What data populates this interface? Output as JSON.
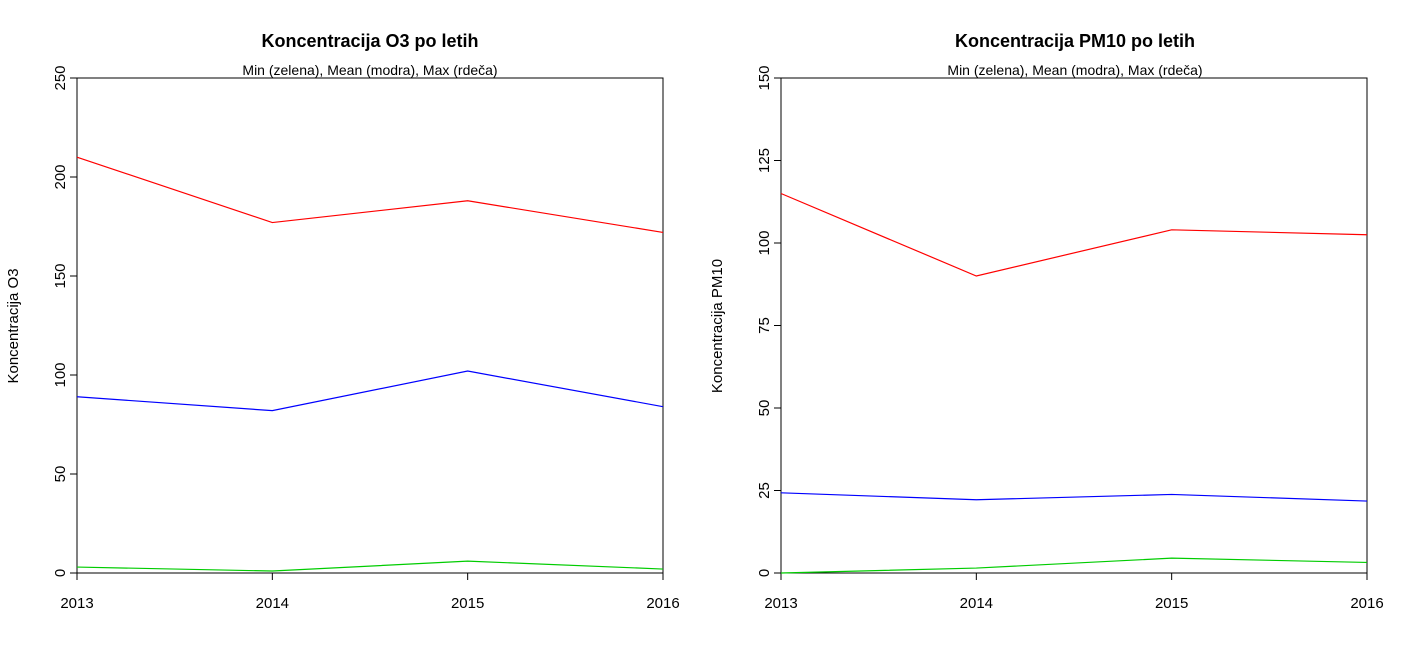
{
  "chart_data": [
    {
      "type": "line",
      "title": "Koncentracija O3 po letih",
      "subtitle": "Min (zelena), Mean (modra), Max (rdeča)",
      "xlabel": "",
      "ylabel": "Koncentracija O3",
      "x": [
        2013,
        2014,
        2015,
        2016
      ],
      "xticks": [
        2013,
        2014,
        2015,
        2016
      ],
      "ylim": [
        0,
        250
      ],
      "yticks": [
        0,
        50,
        100,
        150,
        200,
        250
      ],
      "grid": false,
      "series": [
        {
          "color": "#ff0000",
          "values": [
            210,
            177,
            188,
            172
          ]
        },
        {
          "color": "#0000ff",
          "values": [
            89,
            82,
            102,
            84
          ]
        },
        {
          "color": "#00cc00",
          "values": [
            3,
            1,
            6,
            2
          ]
        }
      ]
    },
    {
      "type": "line",
      "title": "Koncentracija PM10 po letih",
      "subtitle": "Min (zelena), Mean (modra), Max (rdeča)",
      "xlabel": "",
      "ylabel": "Koncentracija PM10",
      "x": [
        2013,
        2014,
        2015,
        2016
      ],
      "xticks": [
        2013,
        2014,
        2015,
        2016
      ],
      "ylim": [
        0,
        150
      ],
      "yticks": [
        0,
        25,
        50,
        75,
        100,
        125,
        150
      ],
      "grid": false,
      "series": [
        {
          "color": "#ff0000",
          "values": [
            115,
            90,
            104,
            102.5
          ]
        },
        {
          "color": "#0000ff",
          "values": [
            24.3,
            22.2,
            23.8,
            21.8
          ]
        },
        {
          "color": "#00cc00",
          "values": [
            0,
            1.5,
            4.5,
            3.2
          ]
        }
      ]
    }
  ]
}
